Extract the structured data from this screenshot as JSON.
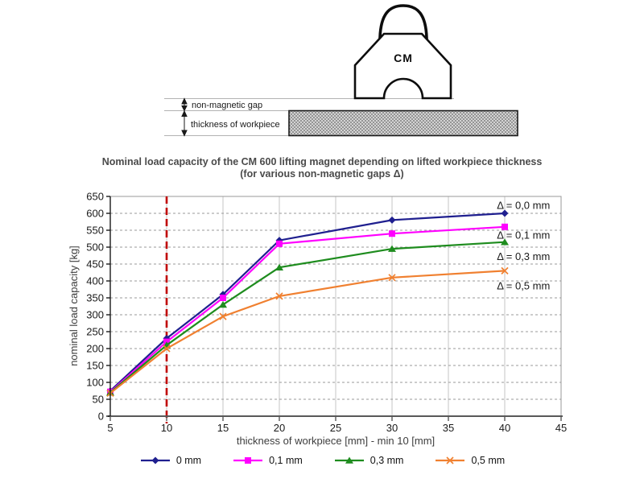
{
  "diagram": {
    "magnet_label": "CM",
    "gap_label": "non-magnetic gap",
    "thickness_label": "thickness of workpiece"
  },
  "title": {
    "line1": "Nominal load capacity of the CM 600 lifting magnet depending on lifted workpiece thickness",
    "line2": "(for various non-magnetic gaps Δ)"
  },
  "chart_data": {
    "type": "line",
    "x": [
      5,
      10,
      15,
      20,
      30,
      40
    ],
    "xlabel": "thickness of workpiece [mm] - min 10 [mm]",
    "ylabel": "nominal load capacity [kg]",
    "xlim": [
      5,
      45
    ],
    "xtick_step": 5,
    "ylim": [
      0,
      650
    ],
    "ytick_step": 50,
    "grid": true,
    "legend_position": "bottom",
    "min_thickness_line": {
      "x": 10,
      "color": "#c00000"
    },
    "series": [
      {
        "name": "0 mm",
        "color": "#1f1f8f",
        "marker": "diamond",
        "values": [
          75,
          230,
          360,
          520,
          580,
          600
        ]
      },
      {
        "name": "0,1 mm",
        "color": "#ff00ff",
        "marker": "square",
        "values": [
          72,
          220,
          350,
          510,
          540,
          560
        ]
      },
      {
        "name": "0,3 mm",
        "color": "#1e8c1e",
        "marker": "triangle",
        "values": [
          70,
          210,
          330,
          440,
          495,
          515
        ]
      },
      {
        "name": "0,5 mm",
        "color": "#f08030",
        "marker": "x",
        "values": [
          68,
          200,
          295,
          355,
          410,
          430
        ]
      }
    ],
    "annotations": [
      {
        "text": "Δ = 0,0 mm",
        "x": 39.3,
        "y": 623
      },
      {
        "text": "Δ = 0,1 mm",
        "x": 39.3,
        "y": 535
      },
      {
        "text": "Δ = 0,3 mm",
        "x": 39.3,
        "y": 471
      },
      {
        "text": "Δ = 0,5 mm",
        "x": 39.3,
        "y": 385
      }
    ],
    "axis_color": "#595959",
    "grid_color": "#9a9a9a"
  }
}
